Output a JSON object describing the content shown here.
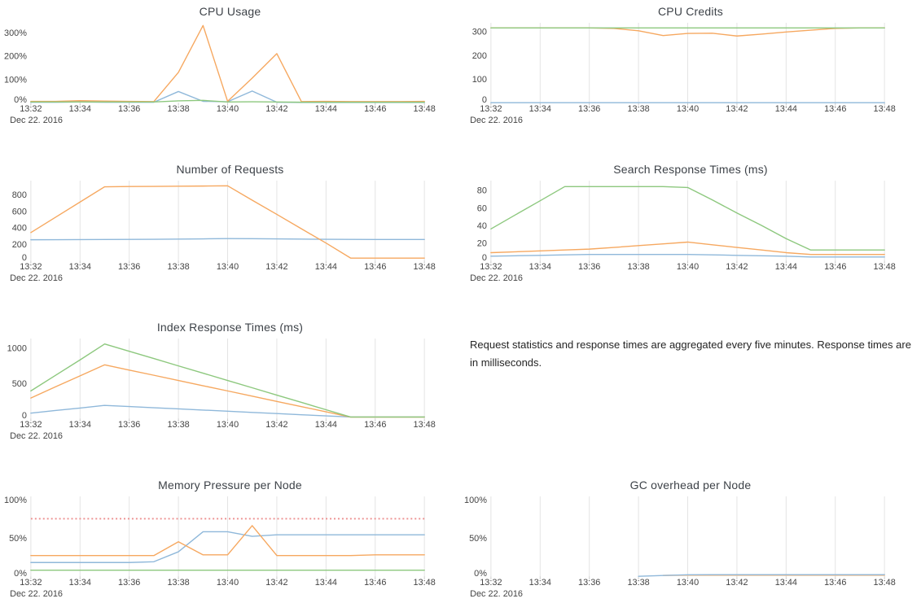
{
  "note": {
    "text": "Request statistics and response times are aggregated every five minutes. Response times are in milliseconds."
  },
  "colors": {
    "blue": "#8fb8da",
    "orange": "#f6a860",
    "green": "#8dc87e",
    "threshold_red": "#ec8f8f",
    "grid": "#e4e4e4",
    "tick_mark": "#cccccc",
    "tick_text": "#444444",
    "title_text": "#3d4248"
  },
  "chart_data": [
    {
      "type": "line",
      "title": "CPU Usage",
      "x": [
        "13:32",
        "13:33",
        "13:34",
        "13:35",
        "13:36",
        "13:37",
        "13:38",
        "13:39",
        "13:40",
        "13:41",
        "13:42",
        "13:43",
        "13:44",
        "13:45",
        "13:46",
        "13:47",
        "13:48"
      ],
      "x_tick_labels": [
        "13:32",
        "13:34",
        "13:36",
        "13:38",
        "13:40",
        "13:42",
        "13:44",
        "13:46",
        "13:48"
      ],
      "date_label": "Dec 22. 2016",
      "ylim": [
        0,
        335
      ],
      "y_ticks": [
        {
          "value": 0,
          "label": "0%"
        },
        {
          "value": 100,
          "label": "100%"
        },
        {
          "value": 200,
          "label": "200%"
        },
        {
          "value": 300,
          "label": "300%"
        }
      ],
      "grid_vertical": false,
      "legend": "none",
      "series": [
        {
          "name": "blue-node",
          "color_key": "blue",
          "values": [
            2,
            2,
            3,
            2,
            2,
            2,
            48,
            6,
            4,
            50,
            2,
            1,
            1,
            1,
            1,
            1,
            1
          ]
        },
        {
          "name": "orange-node",
          "color_key": "orange",
          "values": [
            6,
            6,
            9,
            7,
            6,
            5,
            130,
            330,
            6,
            105,
            210,
            5,
            6,
            5,
            5,
            5,
            6
          ]
        },
        {
          "name": "green-node",
          "color_key": "green",
          "values": [
            3,
            3,
            3,
            3,
            3,
            3,
            8,
            10,
            3,
            4,
            3,
            2,
            2,
            2,
            2,
            2,
            2
          ]
        }
      ]
    },
    {
      "type": "line",
      "title": "CPU Credits",
      "x": [
        "13:32",
        "13:33",
        "13:34",
        "13:35",
        "13:36",
        "13:37",
        "13:38",
        "13:39",
        "13:40",
        "13:41",
        "13:42",
        "13:43",
        "13:44",
        "13:45",
        "13:46",
        "13:47",
        "13:48"
      ],
      "x_tick_labels": [
        "13:32",
        "13:34",
        "13:36",
        "13:38",
        "13:40",
        "13:42",
        "13:44",
        "13:46",
        "13:48"
      ],
      "date_label": "Dec 22. 2016",
      "ylim": [
        0,
        330
      ],
      "y_ticks": [
        {
          "value": 0,
          "label": "0"
        },
        {
          "value": 100,
          "label": "100"
        },
        {
          "value": 200,
          "label": "200"
        },
        {
          "value": 300,
          "label": "300"
        }
      ],
      "grid_vertical": true,
      "legend": "none",
      "series": [
        {
          "name": "blue-node",
          "color_key": "blue",
          "values": [
            0,
            0,
            0,
            0,
            0,
            0,
            0,
            0,
            0,
            0,
            0,
            0,
            0,
            0,
            0,
            0,
            0
          ]
        },
        {
          "name": "orange-node",
          "color_key": "orange",
          "values": [
            315,
            315,
            315,
            315,
            315,
            313,
            303,
            283,
            292,
            293,
            281,
            289,
            298,
            306,
            313,
            315,
            315
          ]
        },
        {
          "name": "green-node",
          "color_key": "green",
          "values": [
            315,
            315,
            315,
            315,
            315,
            315,
            315,
            315,
            315,
            315,
            315,
            315,
            315,
            315,
            315,
            315,
            315
          ]
        }
      ]
    },
    {
      "type": "line",
      "title": "Number of Requests",
      "x": [
        "13:32",
        "13:33",
        "13:34",
        "13:35",
        "13:36",
        "13:37",
        "13:38",
        "13:39",
        "13:40",
        "13:41",
        "13:42",
        "13:43",
        "13:44",
        "13:45",
        "13:46",
        "13:47",
        "13:48"
      ],
      "x_tick_labels": [
        "13:32",
        "13:34",
        "13:36",
        "13:38",
        "13:40",
        "13:42",
        "13:44",
        "13:46",
        "13:48"
      ],
      "date_label": "Dec 22. 2016",
      "ylim": [
        0,
        950
      ],
      "y_ticks": [
        {
          "value": 0,
          "label": "0"
        },
        {
          "value": 200,
          "label": "200"
        },
        {
          "value": 400,
          "label": "400"
        },
        {
          "value": 600,
          "label": "600"
        },
        {
          "value": 800,
          "label": "800"
        }
      ],
      "grid_vertical": true,
      "legend": "none",
      "series": [
        {
          "name": "blue-requests",
          "color_key": "blue",
          "values": [
            253,
            254,
            255,
            256,
            257,
            259,
            261,
            263,
            266,
            265,
            263,
            261,
            259,
            257,
            256,
            256,
            256
          ]
        },
        {
          "name": "orange-requests",
          "color_key": "orange",
          "values": [
            340,
            525,
            710,
            895,
            898,
            900,
            902,
            904,
            907,
            733,
            560,
            386,
            213,
            30,
            30,
            30,
            30
          ]
        }
      ]
    },
    {
      "type": "line",
      "title": "Search Response Times (ms)",
      "x": [
        "13:32",
        "13:33",
        "13:34",
        "13:35",
        "13:36",
        "13:37",
        "13:38",
        "13:39",
        "13:40",
        "13:41",
        "13:42",
        "13:43",
        "13:44",
        "13:45",
        "13:46",
        "13:47",
        "13:48"
      ],
      "x_tick_labels": [
        "13:32",
        "13:34",
        "13:36",
        "13:38",
        "13:40",
        "13:42",
        "13:44",
        "13:46",
        "13:48"
      ],
      "date_label": "Dec 22. 2016",
      "ylim": [
        0,
        89
      ],
      "y_ticks": [
        {
          "value": 0,
          "label": "0"
        },
        {
          "value": 20,
          "label": "20"
        },
        {
          "value": 40,
          "label": "40"
        },
        {
          "value": 60,
          "label": "60"
        },
        {
          "value": 80,
          "label": "80"
        }
      ],
      "grid_vertical": true,
      "legend": "none",
      "series": [
        {
          "name": "blue-search",
          "color_key": "blue",
          "values": [
            5,
            5.5,
            6,
            6.5,
            7,
            7,
            7,
            7,
            7,
            6.5,
            6,
            5.5,
            5,
            4,
            4,
            4,
            4
          ]
        },
        {
          "name": "orange-search",
          "color_key": "orange",
          "values": [
            9,
            10,
            11,
            12,
            13,
            15,
            17,
            19,
            21,
            18,
            15,
            12,
            9,
            7,
            7,
            7,
            7
          ]
        },
        {
          "name": "green-search",
          "color_key": "green",
          "values": [
            36,
            52,
            68,
            84,
            84,
            84,
            84,
            84,
            83,
            69,
            54,
            40,
            25,
            12,
            12,
            12,
            12
          ]
        }
      ]
    },
    {
      "type": "line",
      "title": "Index Response Times (ms)",
      "x": [
        "13:32",
        "13:33",
        "13:34",
        "13:35",
        "13:36",
        "13:37",
        "13:38",
        "13:39",
        "13:40",
        "13:41",
        "13:42",
        "13:43",
        "13:44",
        "13:45",
        "13:46",
        "13:47",
        "13:48"
      ],
      "x_tick_labels": [
        "13:32",
        "13:34",
        "13:36",
        "13:38",
        "13:40",
        "13:42",
        "13:44",
        "13:46",
        "13:48"
      ],
      "date_label": "Dec 22. 2016",
      "ylim": [
        0,
        1110
      ],
      "y_ticks": [
        {
          "value": 0,
          "label": "0"
        },
        {
          "value": 500,
          "label": "500"
        },
        {
          "value": 1000,
          "label": "1000"
        }
      ],
      "grid_vertical": true,
      "legend": "none",
      "series": [
        {
          "name": "blue-index",
          "color_key": "blue",
          "values": [
            75,
            112,
            148,
            185,
            169,
            152,
            136,
            119,
            103,
            86,
            70,
            53,
            37,
            21,
            21,
            21,
            21
          ]
        },
        {
          "name": "orange-index",
          "color_key": "orange",
          "values": [
            290,
            447,
            603,
            760,
            686,
            612,
            538,
            464,
            390,
            316,
            242,
            168,
            94,
            20,
            20,
            20,
            20
          ]
        },
        {
          "name": "green-index",
          "color_key": "green",
          "values": [
            390,
            610,
            830,
            1055,
            952,
            849,
            745,
            642,
            538,
            435,
            331,
            228,
            124,
            21,
            21,
            21,
            21
          ]
        }
      ]
    },
    {
      "type": "line",
      "title": "Memory Pressure per Node",
      "x": [
        "13:32",
        "13:33",
        "13:34",
        "13:35",
        "13:36",
        "13:37",
        "13:38",
        "13:39",
        "13:40",
        "13:41",
        "13:42",
        "13:43",
        "13:44",
        "13:45",
        "13:46",
        "13:47",
        "13:48"
      ],
      "x_tick_labels": [
        "13:32",
        "13:34",
        "13:36",
        "13:38",
        "13:40",
        "13:42",
        "13:44",
        "13:46",
        "13:48"
      ],
      "date_label": "Dec 22. 2016",
      "ylim": [
        0,
        102
      ],
      "y_ticks": [
        {
          "value": 0,
          "label": "0%"
        },
        {
          "value": 50,
          "label": "50%"
        },
        {
          "value": 100,
          "label": "100%"
        }
      ],
      "grid_vertical": true,
      "legend": "none",
      "threshold": {
        "value": 75,
        "color_key": "threshold_red",
        "style": "dotted",
        "name": "memory-pressure-threshold"
      },
      "series": [
        {
          "name": "green-node",
          "color_key": "green",
          "values": [
            8,
            8,
            8,
            8,
            8,
            8,
            8,
            8,
            8,
            8,
            8,
            8,
            8,
            8,
            8,
            8,
            8
          ]
        },
        {
          "name": "blue-node",
          "color_key": "blue",
          "values": [
            18,
            18,
            18,
            18,
            18,
            19,
            32,
            58,
            58,
            52,
            54,
            54,
            54,
            54,
            54,
            54,
            54
          ]
        },
        {
          "name": "orange-node",
          "color_key": "orange",
          "values": [
            27,
            27,
            27,
            27,
            27,
            27,
            45,
            28,
            28,
            66,
            27,
            27,
            27,
            27,
            28,
            28,
            28
          ]
        }
      ]
    },
    {
      "type": "line",
      "title": "GC overhead per Node",
      "x": [
        "13:32",
        "13:33",
        "13:34",
        "13:35",
        "13:36",
        "13:37",
        "13:38",
        "13:39",
        "13:40",
        "13:41",
        "13:42",
        "13:43",
        "13:44",
        "13:45",
        "13:46",
        "13:47",
        "13:48"
      ],
      "x_tick_labels": [
        "13:32",
        "13:34",
        "13:36",
        "13:38",
        "13:40",
        "13:42",
        "13:44",
        "13:46",
        "13:48"
      ],
      "date_label": "Dec 22. 2016",
      "ylim": [
        0,
        102
      ],
      "y_ticks": [
        {
          "value": 0,
          "label": "0%"
        },
        {
          "value": 50,
          "label": "50%"
        },
        {
          "value": 100,
          "label": "100%"
        }
      ],
      "grid_vertical": true,
      "legend": "none",
      "series": [
        {
          "name": "orange-node",
          "color_key": "orange",
          "values": [
            null,
            null,
            null,
            null,
            null,
            null,
            null,
            1.2,
            1.5,
            1.5,
            1.5,
            1.5,
            1.5,
            1.5,
            1.5,
            1.5,
            1.5
          ]
        },
        {
          "name": "blue-node",
          "color_key": "blue",
          "values": [
            null,
            null,
            null,
            null,
            null,
            null,
            0,
            1,
            2,
            2.2,
            2.2,
            2.2,
            2.2,
            2.2,
            2.2,
            2.2,
            2.2
          ]
        }
      ]
    }
  ]
}
